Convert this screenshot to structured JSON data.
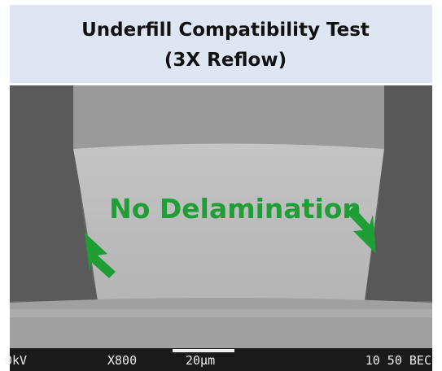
{
  "header": {
    "title_lines": [
      "Underfill Compatibility Test",
      "(3X Reflow)"
    ]
  },
  "annotation": "No Delamination",
  "sem_info": {
    "voltage": "0kV",
    "magnification": "X800",
    "scale_bar": "20µm",
    "stage": "10 50 BEC"
  }
}
